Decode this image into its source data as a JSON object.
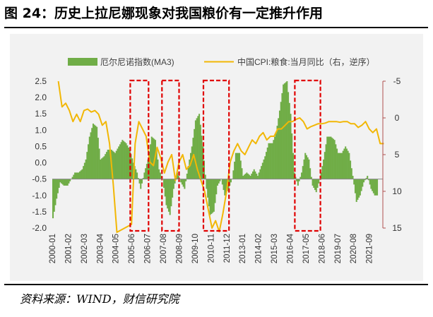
{
  "header": {
    "title": "图 24：历史上拉尼娜现象对我国粮价有一定推升作用"
  },
  "footer": {
    "source": "资料来源：WIND，财信研究院"
  },
  "chart_data": {
    "type": "bar+line",
    "title": "",
    "legend_placement": "top",
    "legend": [
      {
        "label": "厄尔尼诺指数(MA3)",
        "kind": "bar",
        "color": "#70ad47"
      },
      {
        "label": "中国CPI:粮食:当月同比（右，逆序）",
        "kind": "line",
        "color": "#f2b705"
      }
    ],
    "colors": {
      "bar": "#70ad47",
      "line": "#f2b705",
      "highlight": "#e00000",
      "axis": "#888888",
      "right_axis_text": "#333333"
    },
    "x_tick_labels": [
      "2000-01",
      "2001-02",
      "2002-03",
      "2003-04",
      "2004-05",
      "2005-06",
      "2006-07",
      "2007-08",
      "2008-09",
      "2009-10",
      "2010-11",
      "2011-12",
      "2013-01",
      "2014-02",
      "2015-03",
      "2016-04",
      "2017-05",
      "2018-06",
      "2019-07",
      "2020-08",
      "2021-09"
    ],
    "x_start_month": "2000-01",
    "y_left": {
      "min": -2.0,
      "max": 2.5,
      "ticks": [
        "-2.0",
        "-1.5",
        "-1.0",
        "-0.5",
        "0.0",
        "0.5",
        "1.0",
        "1.5",
        "2.0",
        "2.5"
      ]
    },
    "y_right": {
      "min": -5,
      "max": 15,
      "reversed": true,
      "ticks": [
        "-5",
        "0",
        "5",
        "10",
        "15"
      ]
    },
    "bar_baseline": -0.5,
    "bar_series": {
      "name": "厄尔尼诺指数(MA3)",
      "points": [
        [
          "2000-01",
          -1.7
        ],
        [
          "2000-04",
          -1.1
        ],
        [
          "2000-07",
          -0.6
        ],
        [
          "2000-10",
          -0.7
        ],
        [
          "2001-01",
          -0.7
        ],
        [
          "2001-04",
          -0.5
        ],
        [
          "2001-07",
          -0.3
        ],
        [
          "2001-10",
          -0.3
        ],
        [
          "2002-01",
          -0.2
        ],
        [
          "2002-04",
          0.1
        ],
        [
          "2002-07",
          0.8
        ],
        [
          "2002-10",
          1.2
        ],
        [
          "2003-01",
          1.1
        ],
        [
          "2003-04",
          0.1
        ],
        [
          "2003-07",
          0.2
        ],
        [
          "2003-10",
          0.4
        ],
        [
          "2004-01",
          0.4
        ],
        [
          "2004-04",
          0.3
        ],
        [
          "2004-07",
          0.5
        ],
        [
          "2004-10",
          0.7
        ],
        [
          "2005-01",
          0.6
        ],
        [
          "2005-04",
          0.4
        ],
        [
          "2005-07",
          0.0
        ],
        [
          "2005-10",
          -0.3
        ],
        [
          "2006-01",
          -0.8
        ],
        [
          "2006-04",
          -0.3
        ],
        [
          "2006-07",
          0.1
        ],
        [
          "2006-10",
          0.8
        ],
        [
          "2007-01",
          0.7
        ],
        [
          "2007-04",
          -0.2
        ],
        [
          "2007-07",
          -0.5
        ],
        [
          "2007-10",
          -1.3
        ],
        [
          "2008-01",
          -1.6
        ],
        [
          "2008-04",
          -0.8
        ],
        [
          "2008-07",
          -0.3
        ],
        [
          "2008-10",
          -0.6
        ],
        [
          "2009-01",
          -0.8
        ],
        [
          "2009-04",
          -0.1
        ],
        [
          "2009-07",
          0.5
        ],
        [
          "2009-10",
          1.3
        ],
        [
          "2010-01",
          1.5
        ],
        [
          "2010-04",
          0.5
        ],
        [
          "2010-07",
          -0.8
        ],
        [
          "2010-10",
          -1.6
        ],
        [
          "2011-01",
          -1.5
        ],
        [
          "2011-04",
          -0.7
        ],
        [
          "2011-07",
          -0.5
        ],
        [
          "2011-10",
          -1.0
        ],
        [
          "2012-01",
          -0.8
        ],
        [
          "2012-04",
          -0.5
        ],
        [
          "2012-07",
          0.3
        ],
        [
          "2012-10",
          0.3
        ],
        [
          "2013-01",
          -0.4
        ],
        [
          "2013-04",
          -0.3
        ],
        [
          "2013-07",
          -0.4
        ],
        [
          "2013-10",
          -0.2
        ],
        [
          "2014-01",
          -0.4
        ],
        [
          "2014-04",
          -0.1
        ],
        [
          "2014-07",
          0.2
        ],
        [
          "2014-10",
          0.6
        ],
        [
          "2015-01",
          0.6
        ],
        [
          "2015-04",
          0.9
        ],
        [
          "2015-07",
          1.6
        ],
        [
          "2015-10",
          2.4
        ],
        [
          "2016-01",
          2.5
        ],
        [
          "2016-04",
          1.5
        ],
        [
          "2016-07",
          -0.3
        ],
        [
          "2016-10",
          -0.7
        ],
        [
          "2017-01",
          -0.3
        ],
        [
          "2017-04",
          0.3
        ],
        [
          "2017-07",
          0.1
        ],
        [
          "2017-10",
          -0.7
        ],
        [
          "2018-01",
          -0.9
        ],
        [
          "2018-04",
          -0.5
        ],
        [
          "2018-07",
          0.1
        ],
        [
          "2018-10",
          0.8
        ],
        [
          "2019-01",
          0.8
        ],
        [
          "2019-04",
          0.7
        ],
        [
          "2019-07",
          0.3
        ],
        [
          "2019-10",
          0.3
        ],
        [
          "2020-01",
          0.5
        ],
        [
          "2020-04",
          0.3
        ],
        [
          "2020-07",
          -0.4
        ],
        [
          "2020-10",
          -1.2
        ],
        [
          "2021-01",
          -1.0
        ],
        [
          "2021-04",
          -0.6
        ],
        [
          "2021-07",
          -0.4
        ],
        [
          "2021-10",
          -0.8
        ],
        [
          "2022-01",
          -1.0
        ],
        [
          "2022-04",
          -1.0
        ]
      ]
    },
    "line_series": {
      "name": "中国CPI:粮食:当月同比（右，逆序）",
      "points": [
        [
          "2000-06",
          -5.0
        ],
        [
          "2000-09",
          -1.5
        ],
        [
          "2000-12",
          -2.0
        ],
        [
          "2001-03",
          -1.0
        ],
        [
          "2001-06",
          0.5
        ],
        [
          "2001-09",
          -0.5
        ],
        [
          "2001-12",
          0.5
        ],
        [
          "2002-03",
          -1.0
        ],
        [
          "2002-06",
          -1.2
        ],
        [
          "2002-09",
          -0.8
        ],
        [
          "2002-12",
          -1.0
        ],
        [
          "2003-03",
          -0.5
        ],
        [
          "2003-06",
          1.0
        ],
        [
          "2003-09",
          0.5
        ],
        [
          "2003-12",
          3.5
        ],
        [
          "2004-03",
          9.0
        ],
        [
          "2004-06",
          16.0
        ],
        [
          "2005-06",
          14.5
        ],
        [
          "2005-09",
          3.5
        ],
        [
          "2005-12",
          0.5
        ],
        [
          "2006-03",
          1.5
        ],
        [
          "2006-06",
          2.5
        ],
        [
          "2006-09",
          6.0
        ],
        [
          "2006-12",
          6.5
        ],
        [
          "2007-03",
          4.0
        ],
        [
          "2007-06",
          5.5
        ],
        [
          "2007-09",
          7.5
        ],
        [
          "2007-12",
          6.0
        ],
        [
          "2008-03",
          5.0
        ],
        [
          "2008-06",
          8.5
        ],
        [
          "2008-09",
          6.0
        ],
        [
          "2008-12",
          5.0
        ],
        [
          "2009-03",
          7.0
        ],
        [
          "2009-06",
          6.5
        ],
        [
          "2009-09",
          5.0
        ],
        [
          "2009-12",
          7.0
        ],
        [
          "2010-03",
          8.5
        ],
        [
          "2010-06",
          10.0
        ],
        [
          "2010-09",
          12.5
        ],
        [
          "2010-12",
          15.0
        ],
        [
          "2011-03",
          14.0
        ],
        [
          "2011-06",
          15.5
        ],
        [
          "2011-09",
          13.0
        ],
        [
          "2011-12",
          10.0
        ],
        [
          "2012-03",
          6.0
        ],
        [
          "2012-06",
          4.5
        ],
        [
          "2012-09",
          3.5
        ],
        [
          "2012-12",
          4.5
        ],
        [
          "2013-03",
          5.0
        ],
        [
          "2013-06",
          4.0
        ],
        [
          "2013-09",
          3.0
        ],
        [
          "2013-12",
          3.5
        ],
        [
          "2014-03",
          2.5
        ],
        [
          "2014-06",
          2.0
        ],
        [
          "2014-09",
          3.0
        ],
        [
          "2014-12",
          2.5
        ],
        [
          "2015-03",
          2.5
        ],
        [
          "2015-06",
          1.5
        ],
        [
          "2015-09",
          1.5
        ],
        [
          "2015-12",
          1.0
        ],
        [
          "2016-03",
          0.5
        ],
        [
          "2016-06",
          0.5
        ],
        [
          "2016-09",
          0.2
        ],
        [
          "2016-12",
          0.0
        ],
        [
          "2017-03",
          0.5
        ],
        [
          "2017-06",
          1.5
        ],
        [
          "2017-09",
          1.2
        ],
        [
          "2017-12",
          1.0
        ],
        [
          "2018-03",
          0.8
        ],
        [
          "2018-06",
          0.8
        ],
        [
          "2018-09",
          0.7
        ],
        [
          "2018-12",
          0.5
        ],
        [
          "2019-03",
          0.5
        ],
        [
          "2019-06",
          0.5
        ],
        [
          "2019-09",
          0.6
        ],
        [
          "2019-12",
          0.5
        ],
        [
          "2020-03",
          0.5
        ],
        [
          "2020-06",
          0.8
        ],
        [
          "2020-09",
          0.8
        ],
        [
          "2020-12",
          1.3
        ],
        [
          "2021-03",
          1.0
        ],
        [
          "2021-06",
          0.5
        ],
        [
          "2021-09",
          1.5
        ],
        [
          "2021-12",
          2.0
        ],
        [
          "2022-03",
          1.5
        ],
        [
          "2022-06",
          3.5
        ],
        [
          "2022-09",
          3.5
        ]
      ]
    },
    "highlights": [
      {
        "from": "2005-05",
        "to": "2006-08"
      },
      {
        "from": "2007-07",
        "to": "2008-09"
      },
      {
        "from": "2010-05",
        "to": "2012-02"
      },
      {
        "from": "2016-08",
        "to": "2018-05"
      }
    ]
  }
}
